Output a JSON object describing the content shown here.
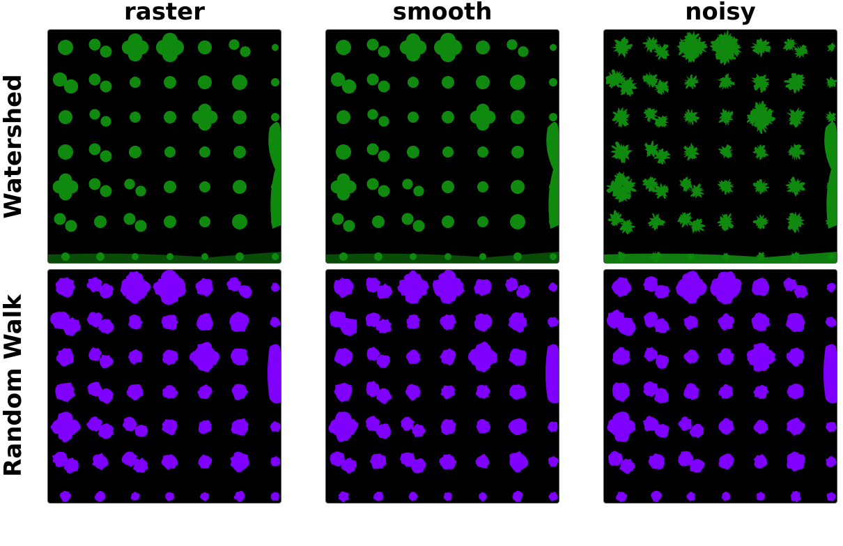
{
  "columns": [
    "raster",
    "smooth",
    "noisy"
  ],
  "rows": [
    "Watershed",
    "Random Walk"
  ],
  "colors": {
    "watershed": "#0f8a0f",
    "random_walk": "#7f00ff",
    "background": "#000000"
  },
  "panels": [
    {
      "row": "Watershed",
      "column": "raster",
      "style": "round"
    },
    {
      "row": "Watershed",
      "column": "smooth",
      "style": "round"
    },
    {
      "row": "Watershed",
      "column": "noisy",
      "style": "jagged"
    },
    {
      "row": "Random Walk",
      "column": "raster",
      "style": "blob"
    },
    {
      "row": "Random Walk",
      "column": "smooth",
      "style": "blob"
    },
    {
      "row": "Random Walk",
      "column": "noisy",
      "style": "blob"
    }
  ]
}
